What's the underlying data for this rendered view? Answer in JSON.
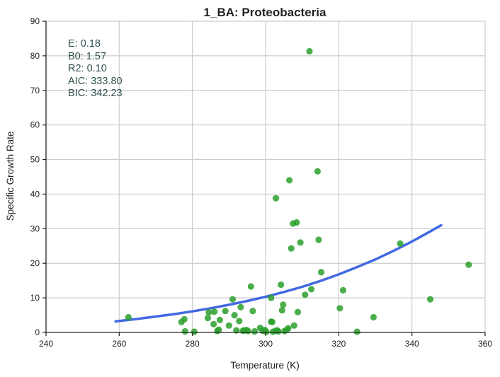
{
  "chart_data": {
    "type": "scatter",
    "title": "1_BA: Proteobacteria",
    "xlabel": "Temperature (K)",
    "ylabel": "Specific Growth Rate",
    "xlim": [
      240,
      360
    ],
    "ylim": [
      0,
      90
    ],
    "xticks": [
      "240",
      "260",
      "280",
      "300",
      "320",
      "340",
      "360"
    ],
    "yticks": [
      "0",
      "10",
      "20",
      "30",
      "40",
      "50",
      "60",
      "70",
      "80",
      "90"
    ],
    "grid": true,
    "annotations": [
      "E:  0.18",
      "B0:  1.57",
      "R2:  0.10",
      "AIC: 333.80",
      "BIC: 342.23"
    ],
    "colors": {
      "points": "#2ca02c",
      "fit": "#4169e1",
      "annotation": "#2f4f4f",
      "grid": "#cccccc"
    },
    "series": [
      {
        "type": "scatter",
        "points": [
          [
            262.5,
            4.4
          ],
          [
            277.0,
            3.0
          ],
          [
            277.8,
            3.8
          ],
          [
            278.0,
            0.3
          ],
          [
            280.5,
            0.2
          ],
          [
            284.2,
            4.2
          ],
          [
            284.5,
            5.8
          ],
          [
            285.8,
            2.4
          ],
          [
            286.0,
            6.0
          ],
          [
            286.8,
            0.4
          ],
          [
            287.2,
            0.8
          ],
          [
            287.5,
            3.6
          ],
          [
            289.0,
            6.2
          ],
          [
            290.0,
            2.0
          ],
          [
            291.0,
            9.6
          ],
          [
            291.5,
            5.0
          ],
          [
            292.0,
            0.6
          ],
          [
            292.8,
            3.3
          ],
          [
            293.2,
            7.3
          ],
          [
            293.8,
            0.5
          ],
          [
            294.2,
            0.6
          ],
          [
            294.8,
            0.7
          ],
          [
            295.2,
            0.4
          ],
          [
            296.0,
            13.3
          ],
          [
            296.5,
            6.2
          ],
          [
            297.0,
            0.3
          ],
          [
            298.5,
            1.3
          ],
          [
            299.2,
            0.5
          ],
          [
            299.8,
            0.7
          ],
          [
            300.2,
            0.2
          ],
          [
            301.5,
            10.0
          ],
          [
            301.5,
            3.1
          ],
          [
            301.8,
            3.0
          ],
          [
            302.0,
            0.2
          ],
          [
            302.8,
            0.5
          ],
          [
            303.2,
            0.6
          ],
          [
            303.5,
            0.3
          ],
          [
            304.2,
            13.8
          ],
          [
            304.5,
            6.4
          ],
          [
            304.8,
            8.0
          ],
          [
            305.2,
            0.4
          ],
          [
            305.8,
            0.8
          ],
          [
            306.2,
            1.2
          ],
          [
            306.5,
            44.0
          ],
          [
            307.0,
            24.3
          ],
          [
            307.5,
            31.5
          ],
          [
            307.8,
            2.0
          ],
          [
            302.8,
            38.8
          ],
          [
            308.5,
            31.8
          ],
          [
            308.8,
            5.9
          ],
          [
            309.5,
            26.0
          ],
          [
            310.8,
            10.9
          ],
          [
            312.0,
            81.3
          ],
          [
            312.5,
            12.5
          ],
          [
            314.2,
            46.6
          ],
          [
            314.5,
            26.8
          ],
          [
            315.2,
            17.4
          ],
          [
            320.3,
            7.0
          ],
          [
            321.2,
            12.2
          ],
          [
            325.0,
            0.2
          ],
          [
            329.5,
            4.4
          ],
          [
            336.8,
            25.7
          ],
          [
            345.0,
            9.6
          ],
          [
            355.5,
            19.6
          ]
        ]
      },
      {
        "type": "line",
        "points": [
          [
            259,
            3.2
          ],
          [
            265,
            3.9
          ],
          [
            270,
            4.6
          ],
          [
            275,
            5.3
          ],
          [
            280,
            6.1
          ],
          [
            285,
            7.0
          ],
          [
            290,
            8.0
          ],
          [
            295,
            9.1
          ],
          [
            300,
            10.3
          ],
          [
            305,
            11.7
          ],
          [
            310,
            13.2
          ],
          [
            315,
            14.9
          ],
          [
            320,
            16.8
          ],
          [
            325,
            18.9
          ],
          [
            330,
            21.1
          ],
          [
            335,
            23.6
          ],
          [
            340,
            26.3
          ],
          [
            345,
            29.2
          ],
          [
            348,
            31.0
          ]
        ]
      }
    ]
  }
}
